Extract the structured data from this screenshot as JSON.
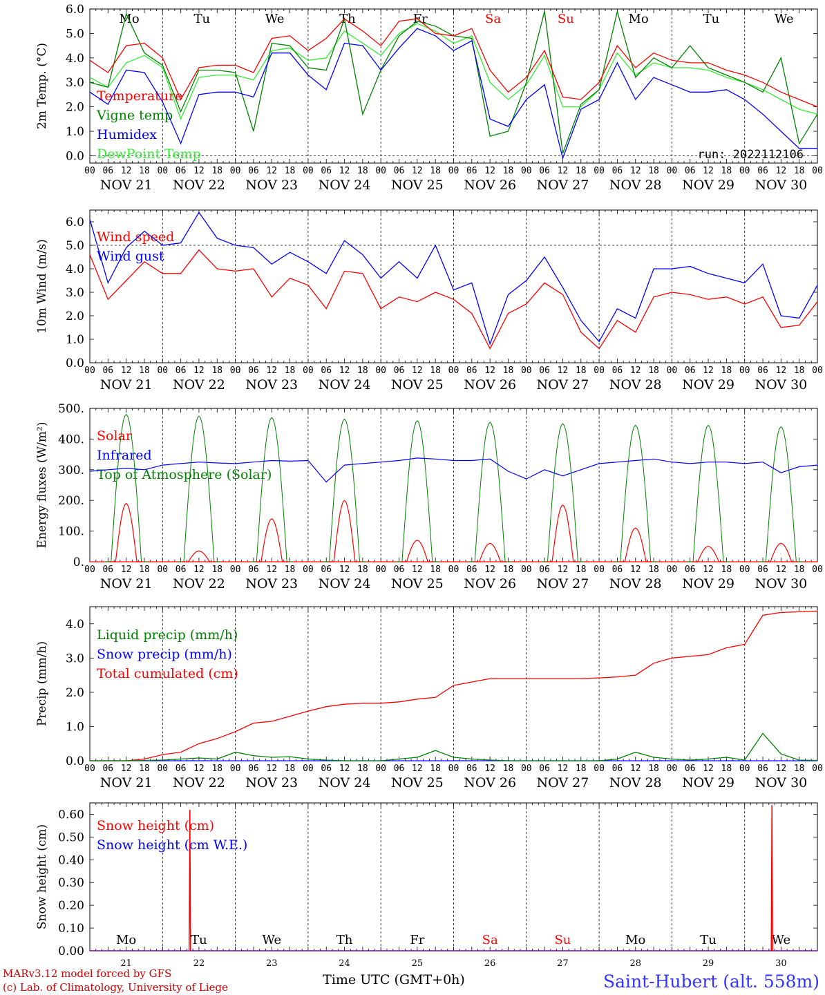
{
  "meteogram": {
    "run_label": "run: 2022112106",
    "axis_hour_labels": [
      "00",
      "06",
      "12",
      "18"
    ],
    "date_labels": [
      "NOV 21",
      "NOV 22",
      "NOV 23",
      "NOV 24",
      "NOV 25",
      "NOV 26",
      "NOV 27",
      "NOV 28",
      "NOV 29",
      "NOV 30"
    ],
    "weekday_labels": [
      "Mo",
      "Tu",
      "We",
      "Th",
      "Fr",
      "Sa",
      "Su",
      "Mo",
      "Tu",
      "We"
    ],
    "weekend_flags": [
      false,
      false,
      false,
      false,
      false,
      true,
      true,
      false,
      false,
      false
    ],
    "day_numbers": [
      "21",
      "22",
      "23",
      "24",
      "25",
      "26",
      "27",
      "28",
      "29",
      "30"
    ],
    "xlabel": "Time UTC (GMT+0h)",
    "footer_left_1": "MARv3.12 model forced by GFS",
    "footer_left_2": "(c) Lab. of Climatology, University of Liege",
    "footer_right": "Saint-Hubert (alt. 558m)",
    "colors": {
      "red": "#ff0000",
      "green": "#008000",
      "blue": "#0000ff",
      "light_green": "#33ee33",
      "grid": "#000000"
    }
  },
  "chart_data": [
    {
      "type": "line",
      "ylabel": "2m Temp. (°C)",
      "ylim": [
        -0.3,
        6.0
      ],
      "yticks": [
        "0.0",
        "1.0",
        "2.0",
        "3.0",
        "4.0",
        "5.0",
        "6.0"
      ],
      "x_hours": [
        0,
        6,
        12,
        18,
        24,
        30,
        36,
        42,
        48,
        54,
        60,
        66,
        72,
        78,
        84,
        90,
        96,
        102,
        108,
        114,
        120,
        126,
        132,
        138,
        144,
        150,
        156,
        162,
        168,
        174,
        180,
        186,
        192,
        198,
        204,
        210,
        216,
        222,
        228,
        234,
        240
      ],
      "series": [
        {
          "name": "Temperature",
          "color": "red",
          "values": [
            3.9,
            3.4,
            4.5,
            4.6,
            4.0,
            2.3,
            3.6,
            3.7,
            3.7,
            3.4,
            4.8,
            4.9,
            4.3,
            4.8,
            5.6,
            5.1,
            4.5,
            5.5,
            5.6,
            5.0,
            4.9,
            5.2,
            3.5,
            2.6,
            3.2,
            4.3,
            2.4,
            2.3,
            3.0,
            4.5,
            3.6,
            4.2,
            3.9,
            3.8,
            3.8,
            3.5,
            3.3,
            3.0,
            2.6,
            2.3,
            2.0
          ]
        },
        {
          "name": "Vigne temp",
          "color": "green",
          "values": [
            3.0,
            2.8,
            5.8,
            4.2,
            3.7,
            1.8,
            3.5,
            3.5,
            3.4,
            1.0,
            4.6,
            4.5,
            3.6,
            3.5,
            5.6,
            1.7,
            3.5,
            4.9,
            5.5,
            5.3,
            4.9,
            4.8,
            0.8,
            1.0,
            3.0,
            5.9,
            0.1,
            2.1,
            2.7,
            5.9,
            3.2,
            4.0,
            3.6,
            4.5,
            3.6,
            3.3,
            3.0,
            2.6,
            4.0,
            0.5,
            1.7
          ]
        },
        {
          "name": "Humidex",
          "color": "blue",
          "values": [
            2.6,
            2.1,
            3.5,
            3.4,
            2.2,
            0.5,
            2.5,
            2.6,
            2.6,
            2.4,
            4.2,
            4.2,
            3.3,
            2.7,
            4.6,
            4.5,
            3.5,
            4.4,
            5.2,
            4.9,
            4.3,
            4.7,
            1.5,
            1.2,
            2.3,
            2.9,
            -0.1,
            1.9,
            2.3,
            3.8,
            2.3,
            3.2,
            2.9,
            2.6,
            2.6,
            2.7,
            2.3,
            1.7,
            1.0,
            0.3,
            0.3
          ]
        },
        {
          "name": "DewPoint Temp",
          "color": "light_green",
          "values": [
            3.2,
            2.8,
            3.8,
            4.1,
            3.6,
            1.5,
            3.2,
            3.3,
            3.3,
            3.1,
            4.3,
            4.4,
            3.9,
            4.0,
            5.1,
            4.6,
            4.1,
            5.0,
            5.4,
            5.1,
            4.6,
            4.9,
            3.0,
            2.3,
            2.9,
            4.1,
            2.0,
            2.0,
            2.7,
            4.2,
            3.3,
            3.8,
            3.6,
            3.6,
            3.5,
            3.2,
            3.0,
            2.7,
            2.3,
            1.9,
            1.7
          ]
        }
      ]
    },
    {
      "type": "line",
      "ylabel": "10m Wind (m/s)",
      "ylim": [
        0.0,
        6.5
      ],
      "yticks": [
        "0.0",
        "1.0",
        "2.0",
        "3.0",
        "4.0",
        "5.0",
        "6.0"
      ],
      "x_hours": [
        0,
        6,
        12,
        18,
        24,
        30,
        36,
        42,
        48,
        54,
        60,
        66,
        72,
        78,
        84,
        90,
        96,
        102,
        108,
        114,
        120,
        126,
        132,
        138,
        144,
        150,
        156,
        162,
        168,
        174,
        180,
        186,
        192,
        198,
        204,
        210,
        216,
        222,
        228,
        234,
        240
      ],
      "series": [
        {
          "name": "Wind speed",
          "color": "red",
          "values": [
            4.6,
            2.7,
            3.5,
            4.3,
            3.8,
            3.8,
            4.8,
            4.0,
            3.9,
            4.0,
            2.8,
            3.6,
            3.3,
            2.3,
            3.9,
            3.8,
            2.3,
            2.8,
            2.6,
            3.0,
            2.7,
            2.1,
            0.6,
            2.1,
            2.5,
            3.4,
            2.9,
            1.3,
            0.6,
            1.8,
            1.3,
            2.8,
            3.0,
            2.9,
            2.7,
            2.8,
            2.5,
            2.8,
            1.5,
            1.6,
            2.6
          ]
        },
        {
          "name": "Wind gust",
          "color": "blue",
          "values": [
            6.1,
            3.4,
            4.9,
            5.6,
            5.0,
            5.1,
            6.4,
            5.3,
            5.0,
            4.9,
            4.2,
            4.7,
            4.3,
            3.8,
            5.2,
            4.6,
            3.6,
            4.3,
            3.6,
            5.0,
            3.1,
            3.4,
            0.8,
            2.9,
            3.5,
            4.5,
            3.2,
            1.8,
            0.9,
            2.3,
            1.9,
            4.0,
            4.0,
            4.1,
            3.8,
            3.6,
            3.4,
            4.2,
            2.0,
            1.9,
            3.3
          ]
        }
      ]
    },
    {
      "type": "line",
      "ylabel": "Energy fluxes (W/m²)",
      "ylim": [
        0,
        500
      ],
      "yticks": [
        "0.",
        "100.",
        "200.",
        "300.",
        "400.",
        "500."
      ],
      "daily_peaks": {
        "Top of Atmosphere (Solar)": [
          480,
          475,
          470,
          465,
          460,
          455,
          450,
          445,
          445,
          440
        ],
        "Solar": [
          190,
          35,
          140,
          200,
          70,
          60,
          185,
          110,
          50,
          60
        ]
      },
      "series": [
        {
          "name": "Solar",
          "color": "red",
          "values": [
            190,
            35,
            140,
            200,
            70,
            60,
            185,
            110,
            50,
            60
          ]
        },
        {
          "name": "Infrared",
          "color": "blue",
          "x_hours": [
            0,
            6,
            12,
            18,
            24,
            30,
            36,
            42,
            48,
            54,
            60,
            66,
            72,
            78,
            84,
            90,
            96,
            102,
            108,
            114,
            120,
            126,
            132,
            138,
            144,
            150,
            156,
            162,
            168,
            174,
            180,
            186,
            192,
            198,
            204,
            210,
            216,
            222,
            228,
            234,
            240
          ],
          "values": [
            295,
            300,
            305,
            300,
            315,
            320,
            325,
            322,
            320,
            325,
            330,
            328,
            330,
            260,
            315,
            320,
            325,
            330,
            338,
            335,
            330,
            330,
            335,
            295,
            270,
            300,
            280,
            300,
            320,
            325,
            330,
            335,
            325,
            320,
            325,
            325,
            320,
            325,
            290,
            310,
            315
          ]
        },
        {
          "name": "Top of Atmosphere (Solar)",
          "color": "green",
          "values": [
            480,
            475,
            470,
            465,
            460,
            455,
            450,
            445,
            445,
            440
          ]
        }
      ]
    },
    {
      "type": "line",
      "ylabel": "Precip (mm/h)",
      "ylim": [
        0.0,
        4.5
      ],
      "yticks": [
        "0.0",
        "1.0",
        "2.0",
        "3.0",
        "4.0"
      ],
      "x_hours": [
        0,
        6,
        12,
        18,
        24,
        30,
        36,
        42,
        48,
        54,
        60,
        66,
        72,
        78,
        84,
        90,
        96,
        102,
        108,
        114,
        120,
        126,
        132,
        138,
        144,
        150,
        156,
        162,
        168,
        174,
        180,
        186,
        192,
        198,
        204,
        210,
        216,
        222,
        228,
        234,
        240
      ],
      "series": [
        {
          "name": "Liquid precip (mm/h)",
          "color": "green",
          "values": [
            0,
            0,
            0,
            0.01,
            0.02,
            0.05,
            0.08,
            0.05,
            0.25,
            0.15,
            0.1,
            0.12,
            0.05,
            0.02,
            0.0,
            0.0,
            0.0,
            0.05,
            0.1,
            0.3,
            0.1,
            0.05,
            0.02,
            0.0,
            0.0,
            0.0,
            0.0,
            0.0,
            0.0,
            0.05,
            0.25,
            0.1,
            0.05,
            0.02,
            0.05,
            0.1,
            0.02,
            0.8,
            0.2,
            0.02,
            0.01
          ]
        },
        {
          "name": "Snow precip (mm/h)",
          "color": "blue",
          "values": [
            0,
            0,
            0,
            0,
            0,
            0,
            0,
            0,
            0,
            0,
            0,
            0,
            0,
            0,
            0,
            0,
            0,
            0,
            0,
            0,
            0,
            0,
            0,
            0,
            0,
            0,
            0,
            0,
            0,
            0,
            0,
            0,
            0,
            0,
            0,
            0,
            0,
            0,
            0,
            0,
            0
          ]
        },
        {
          "name": "Total cumulated (cm)",
          "color": "red",
          "values": [
            0,
            0,
            0,
            0.05,
            0.18,
            0.25,
            0.5,
            0.65,
            0.85,
            1.1,
            1.15,
            1.3,
            1.45,
            1.58,
            1.65,
            1.68,
            1.68,
            1.72,
            1.8,
            1.85,
            2.2,
            2.3,
            2.4,
            2.4,
            2.4,
            2.4,
            2.4,
            2.4,
            2.42,
            2.45,
            2.5,
            2.85,
            3.0,
            3.05,
            3.1,
            3.3,
            3.4,
            4.25,
            4.33,
            4.35,
            4.37
          ]
        }
      ]
    },
    {
      "type": "line",
      "ylabel": "Snow height (cm)",
      "ylim": [
        0.0,
        0.65
      ],
      "yticks": [
        "0.00",
        "0.10",
        "0.20",
        "0.30",
        "0.40",
        "0.50",
        "0.60"
      ],
      "series": [
        {
          "name": "Snow height (cm)",
          "color": "red",
          "spikes": [
            {
              "hour": 33,
              "value": 0.62
            },
            {
              "hour": 225,
              "value": 0.64
            }
          ]
        },
        {
          "name": "Snow height (cm W.E.)",
          "color": "blue",
          "values": [
            0
          ]
        }
      ]
    }
  ]
}
